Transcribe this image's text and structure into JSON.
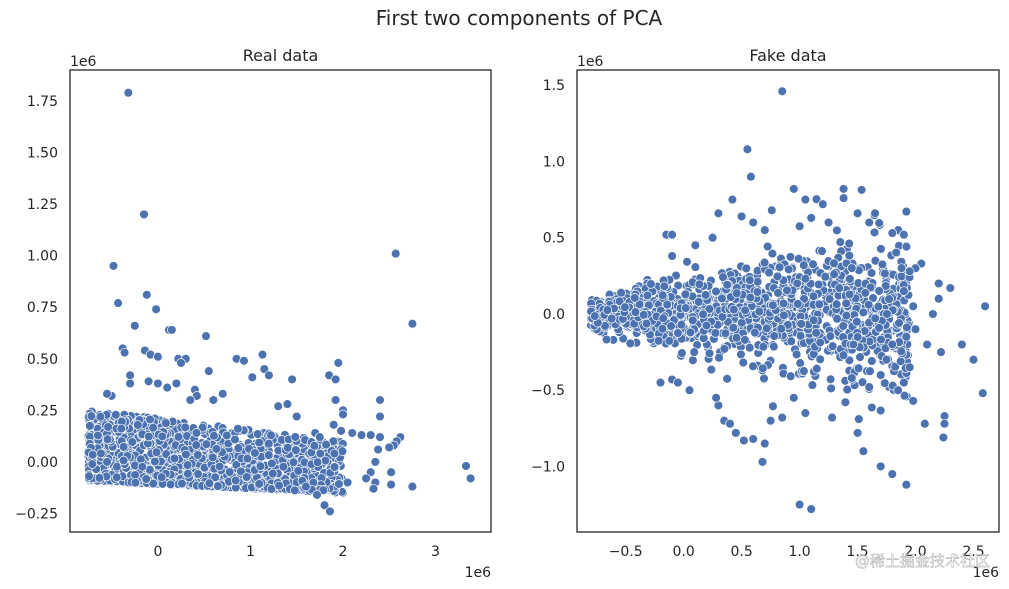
{
  "figure": {
    "suptitle": "First two components of PCA",
    "watermark": "@稀土掘金技术社区"
  },
  "chart_data": [
    {
      "type": "scatter",
      "title": "Real data",
      "xlabel": "",
      "ylabel": "",
      "xlim": [
        -0.95,
        3.6
      ],
      "ylim": [
        -0.34,
        1.9
      ],
      "x_offset_label": "1e6",
      "y_offset_label": "1e6",
      "xticks": [
        0,
        1,
        2,
        3
      ],
      "xtick_labels": [
        "0",
        "1",
        "2",
        "3"
      ],
      "yticks": [
        -0.25,
        0.0,
        0.25,
        0.5,
        0.75,
        1.0,
        1.25,
        1.5,
        1.75
      ],
      "ytick_labels": [
        "−0.25",
        "0.00",
        "0.25",
        "0.50",
        "0.75",
        "1.00",
        "1.25",
        "1.50",
        "1.75"
      ],
      "color": "#4c72b0",
      "cluster": {
        "x_min": -0.75,
        "x_max": 2.0,
        "y_bottom_left": -0.09,
        "y_bottom_right": -0.15,
        "y_top_left": 0.25,
        "y_top_right": 0.1,
        "n": 1400
      },
      "points": [
        [
          -0.32,
          1.79
        ],
        [
          -0.15,
          1.2
        ],
        [
          -0.48,
          0.95
        ],
        [
          -0.43,
          0.77
        ],
        [
          -0.12,
          0.81
        ],
        [
          -0.25,
          0.66
        ],
        [
          -0.02,
          0.74
        ],
        [
          0.12,
          0.64
        ],
        [
          0.15,
          0.64
        ],
        [
          0.52,
          0.61
        ],
        [
          -0.38,
          0.55
        ],
        [
          -0.36,
          0.53
        ],
        [
          -0.14,
          0.54
        ],
        [
          -0.08,
          0.52
        ],
        [
          0.0,
          0.51
        ],
        [
          0.22,
          0.5
        ],
        [
          0.3,
          0.5
        ],
        [
          0.25,
          0.48
        ],
        [
          0.85,
          0.5
        ],
        [
          0.93,
          0.49
        ],
        [
          1.13,
          0.52
        ],
        [
          1.15,
          0.45
        ],
        [
          0.55,
          0.44
        ],
        [
          0.4,
          0.35
        ],
        [
          0.2,
          0.38
        ],
        [
          1.02,
          0.41
        ],
        [
          1.2,
          0.42
        ],
        [
          1.45,
          0.4
        ],
        [
          1.85,
          0.42
        ],
        [
          1.92,
          0.4
        ],
        [
          1.95,
          0.48
        ],
        [
          2.57,
          1.01
        ],
        [
          2.75,
          0.67
        ],
        [
          3.33,
          -0.02
        ],
        [
          3.38,
          -0.08
        ],
        [
          2.4,
          0.3
        ],
        [
          2.4,
          0.22
        ],
        [
          2.0,
          0.25
        ],
        [
          2.0,
          0.23
        ],
        [
          1.92,
          0.3
        ],
        [
          2.38,
          0.06
        ],
        [
          2.35,
          0.0
        ],
        [
          2.3,
          -0.05
        ],
        [
          2.25,
          -0.08
        ],
        [
          2.35,
          -0.1
        ],
        [
          2.33,
          -0.13
        ],
        [
          2.62,
          0.12
        ],
        [
          2.58,
          0.1
        ],
        [
          2.55,
          0.08
        ],
        [
          2.5,
          0.07
        ],
        [
          2.52,
          -0.05
        ],
        [
          2.52,
          -0.11
        ],
        [
          2.75,
          -0.12
        ],
        [
          2.1,
          0.14
        ],
        [
          2.2,
          0.13
        ],
        [
          2.3,
          0.13
        ],
        [
          2.4,
          0.12
        ],
        [
          2.05,
          -0.1
        ],
        [
          1.98,
          0.15
        ],
        [
          1.9,
          0.18
        ],
        [
          1.8,
          -0.21
        ],
        [
          1.86,
          -0.24
        ],
        [
          1.72,
          -0.16
        ],
        [
          1.6,
          -0.12
        ],
        [
          -0.3,
          0.42
        ],
        [
          -0.3,
          0.38
        ],
        [
          0.42,
          0.32
        ],
        [
          1.3,
          0.27
        ],
        [
          1.4,
          0.28
        ],
        [
          1.5,
          0.22
        ],
        [
          1.7,
          0.14
        ],
        [
          1.75,
          0.12
        ],
        [
          0.7,
          0.33
        ],
        [
          0.6,
          0.3
        ],
        [
          -0.5,
          0.32
        ],
        [
          -0.55,
          0.33
        ],
        [
          -0.1,
          0.39
        ],
        [
          0.0,
          0.38
        ],
        [
          0.1,
          0.36
        ],
        [
          0.35,
          0.3
        ]
      ]
    },
    {
      "type": "scatter",
      "title": "Fake data",
      "xlabel": "",
      "ylabel": "",
      "xlim": [
        -0.92,
        2.72
      ],
      "ylim": [
        -1.43,
        1.6
      ],
      "x_offset_label": "1e6",
      "y_offset_label": "1e6",
      "xticks": [
        -0.5,
        0.0,
        0.5,
        1.0,
        1.5,
        2.0,
        2.5
      ],
      "xtick_labels": [
        "−0.5",
        "0.0",
        "0.5",
        "1.0",
        "1.5",
        "2.0",
        "2.5"
      ],
      "yticks": [
        -1.0,
        -0.5,
        0.0,
        0.5,
        1.0,
        1.5
      ],
      "ytick_labels": [
        "−1.0",
        "−0.5",
        "0.0",
        "0.5",
        "1.0",
        "1.5"
      ],
      "color": "#4c72b0",
      "cluster": {
        "x_min": -0.8,
        "x_max": 1.95,
        "spread_left": 0.08,
        "spread_right": 0.48,
        "center_y": 0.0,
        "n": 1500
      },
      "points": [
        [
          0.85,
          1.46
        ],
        [
          0.55,
          1.08
        ],
        [
          0.58,
          0.9
        ],
        [
          0.42,
          0.75
        ],
        [
          0.95,
          0.82
        ],
        [
          1.38,
          0.82
        ],
        [
          1.38,
          0.76
        ],
        [
          1.05,
          0.75
        ],
        [
          1.2,
          0.72
        ],
        [
          0.3,
          0.66
        ],
        [
          0.5,
          0.64
        ],
        [
          0.76,
          0.68
        ],
        [
          1.1,
          0.63
        ],
        [
          1.5,
          0.66
        ],
        [
          1.65,
          0.66
        ],
        [
          1.25,
          0.6
        ],
        [
          1.6,
          0.6
        ],
        [
          1.8,
          0.53
        ],
        [
          1.9,
          0.52
        ],
        [
          -0.15,
          0.52
        ],
        [
          -0.1,
          0.52
        ],
        [
          2.05,
          0.33
        ],
        [
          2.0,
          0.3
        ],
        [
          1.95,
          0.28
        ],
        [
          2.2,
          0.2
        ],
        [
          2.3,
          0.17
        ],
        [
          2.6,
          0.05
        ],
        [
          2.4,
          -0.2
        ],
        [
          2.5,
          -0.3
        ],
        [
          2.58,
          -0.52
        ],
        [
          2.25,
          -0.67
        ],
        [
          2.25,
          -0.72
        ],
        [
          2.24,
          -0.81
        ],
        [
          2.08,
          -0.72
        ],
        [
          1.98,
          -0.57
        ],
        [
          1.9,
          -0.45
        ],
        [
          1.85,
          -0.5
        ],
        [
          1.95,
          -0.35
        ],
        [
          1.5,
          -0.78
        ],
        [
          1.55,
          -0.9
        ],
        [
          1.7,
          -1.0
        ],
        [
          1.8,
          -1.05
        ],
        [
          1.92,
          -1.12
        ],
        [
          1.0,
          -1.25
        ],
        [
          1.1,
          -1.28
        ],
        [
          0.7,
          -0.85
        ],
        [
          0.6,
          -0.82
        ],
        [
          0.68,
          -0.97
        ],
        [
          0.52,
          -0.83
        ],
        [
          0.45,
          -0.78
        ],
        [
          0.35,
          -0.7
        ],
        [
          0.4,
          -0.72
        ],
        [
          0.3,
          -0.6
        ],
        [
          0.28,
          -0.55
        ],
        [
          1.05,
          -0.65
        ],
        [
          1.28,
          -0.68
        ],
        [
          0.75,
          -0.7
        ],
        [
          0.85,
          -0.68
        ],
        [
          2.22,
          -0.25
        ],
        [
          2.1,
          -0.2
        ],
        [
          2.0,
          -0.1
        ],
        [
          2.2,
          0.1
        ],
        [
          2.15,
          0.0
        ],
        [
          1.98,
          0.05
        ],
        [
          1.92,
          -0.15
        ],
        [
          -0.2,
          -0.45
        ],
        [
          -0.1,
          -0.43
        ],
        [
          -0.05,
          -0.45
        ],
        [
          0.05,
          -0.5
        ],
        [
          -0.1,
          0.38
        ],
        [
          0.1,
          0.45
        ],
        [
          0.25,
          0.5
        ],
        [
          0.6,
          0.6
        ],
        [
          0.7,
          0.55
        ],
        [
          1.45,
          -0.42
        ],
        [
          1.6,
          -0.48
        ],
        [
          1.7,
          -0.4
        ],
        [
          1.75,
          -0.3
        ],
        [
          1.8,
          -0.2
        ],
        [
          0.95,
          -0.55
        ]
      ]
    }
  ]
}
